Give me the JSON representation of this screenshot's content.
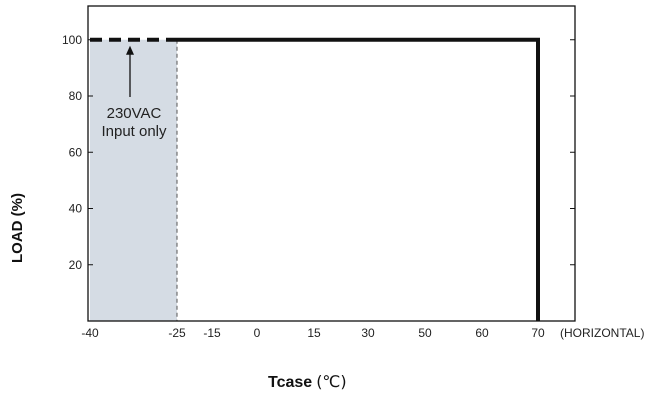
{
  "chart_data": {
    "type": "line",
    "title": "",
    "ylabel": "LOAD (%)",
    "xlabel": "Tcase",
    "xlabel_unit": "(℃)",
    "x_orientation_note": "(HORIZONTAL)",
    "x_tick_labels": [
      "-40",
      "-25",
      "-15",
      "0",
      "15",
      "30",
      "50",
      "60",
      "70"
    ],
    "y_tick_labels": [
      "20",
      "40",
      "60",
      "80",
      "100"
    ],
    "y_ticks": [
      20,
      40,
      60,
      80,
      100
    ],
    "ylim": [
      0,
      112
    ],
    "grid": false,
    "series": [
      {
        "points": [
          [
            "-40",
            100
          ],
          [
            "-25",
            100
          ]
        ],
        "style": "dashed"
      },
      {
        "points": [
          [
            "-25",
            100
          ],
          [
            "70",
            100
          ],
          [
            "70",
            0
          ]
        ],
        "style": "solid"
      }
    ],
    "shaded_region": {
      "x_from": "-40",
      "x_to": "-25",
      "color": "#d5dce4"
    },
    "annotation": {
      "lines": [
        "230VAC",
        "Input only"
      ],
      "arrow_to": [
        "-32",
        100
      ]
    },
    "colors": {
      "line": "#111111",
      "shade": "#d5dce4",
      "frame": "#111111"
    }
  }
}
